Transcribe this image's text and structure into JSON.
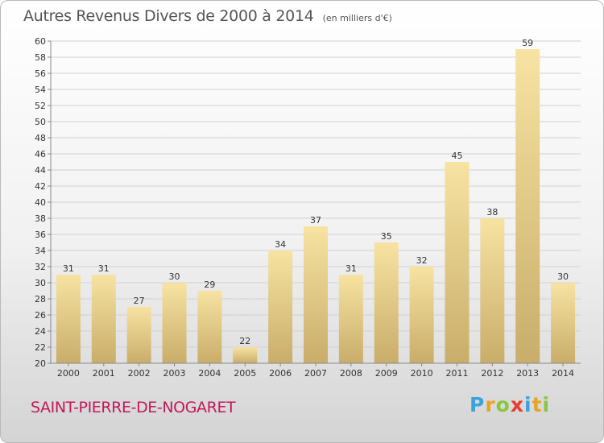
{
  "chart_data": {
    "type": "bar",
    "title": "Autres Revenus Divers de 2000 à 2014",
    "subtitle": "(en milliers d'€)",
    "categories": [
      "2000",
      "2001",
      "2002",
      "2003",
      "2004",
      "2005",
      "2006",
      "2007",
      "2008",
      "2009",
      "2010",
      "2011",
      "2012",
      "2013",
      "2014"
    ],
    "values": [
      31,
      31,
      27,
      30,
      29,
      22,
      34,
      37,
      31,
      35,
      32,
      45,
      38,
      59,
      30
    ],
    "ylim": [
      20,
      60
    ],
    "yticks": [
      20,
      22,
      24,
      26,
      28,
      30,
      32,
      34,
      36,
      38,
      40,
      42,
      44,
      46,
      48,
      50,
      52,
      54,
      56,
      58,
      60
    ],
    "grid": true,
    "bar_color_light": "#f7e3a2",
    "bar_color_dark": "#c9ad6a"
  },
  "footer": {
    "place": "SAINT-PIERRE-DE-NOGARET",
    "logo": "Proxiti",
    "place_color": "#c2185b"
  }
}
